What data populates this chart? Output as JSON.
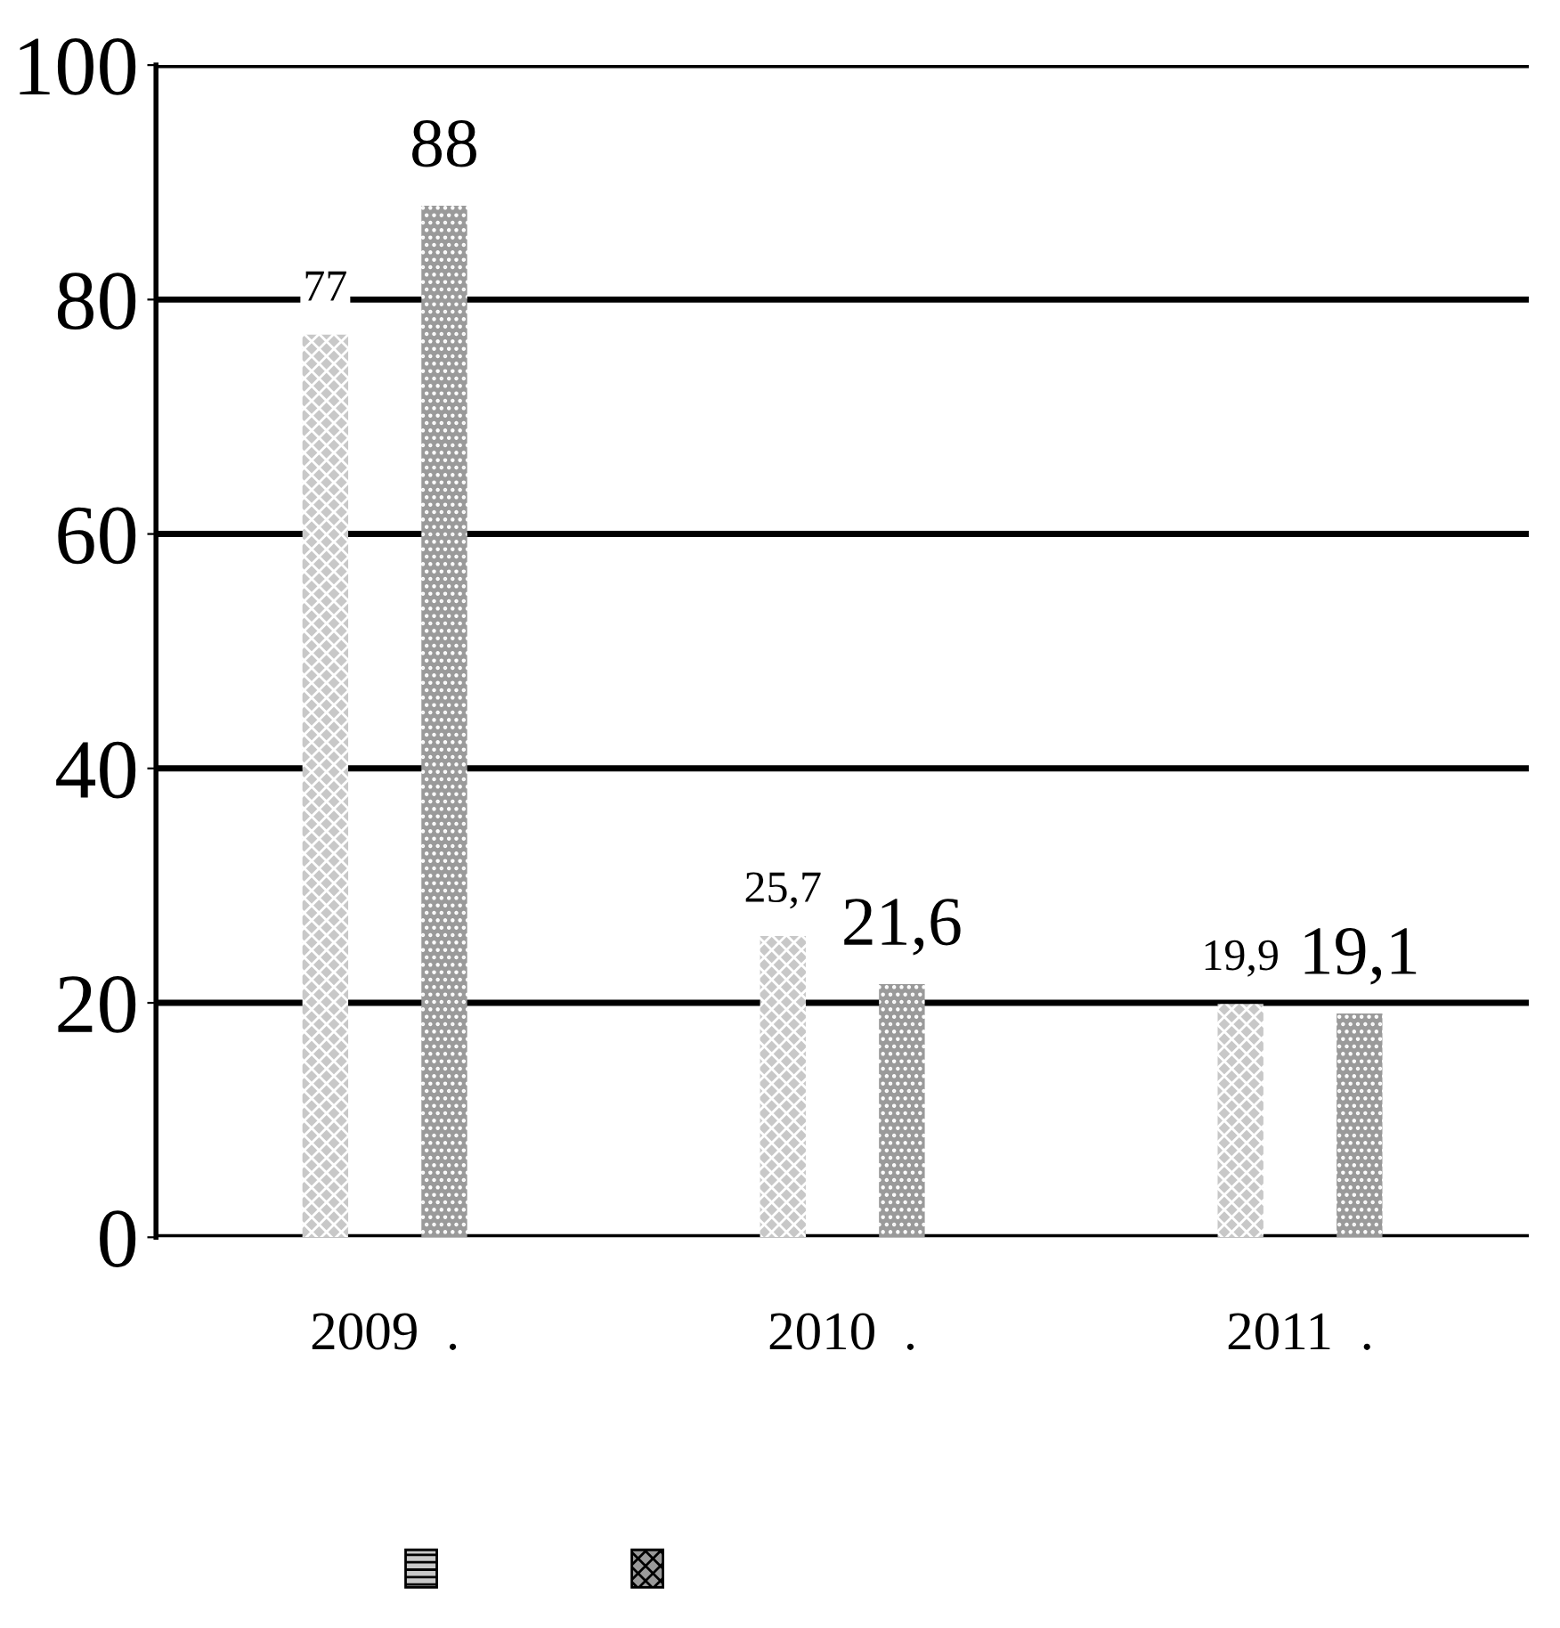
{
  "chart_data": {
    "type": "bar",
    "categories": [
      "2009  .",
      "2010  .",
      "2011  ."
    ],
    "series": [
      {
        "color": "#c8c8c8",
        "values": [
          77,
          25.7,
          19.9
        ],
        "value_labels": [
          "77",
          "25,7",
          "19,9"
        ]
      },
      {
        "color": "#9a9a9a",
        "values": [
          88,
          21.6,
          19.1
        ],
        "value_labels": [
          "88",
          "21,6",
          "19,1"
        ]
      }
    ],
    "ylim": [
      0,
      100
    ],
    "yticks": [
      0,
      20,
      40,
      60,
      80,
      100
    ],
    "grid": "y"
  }
}
